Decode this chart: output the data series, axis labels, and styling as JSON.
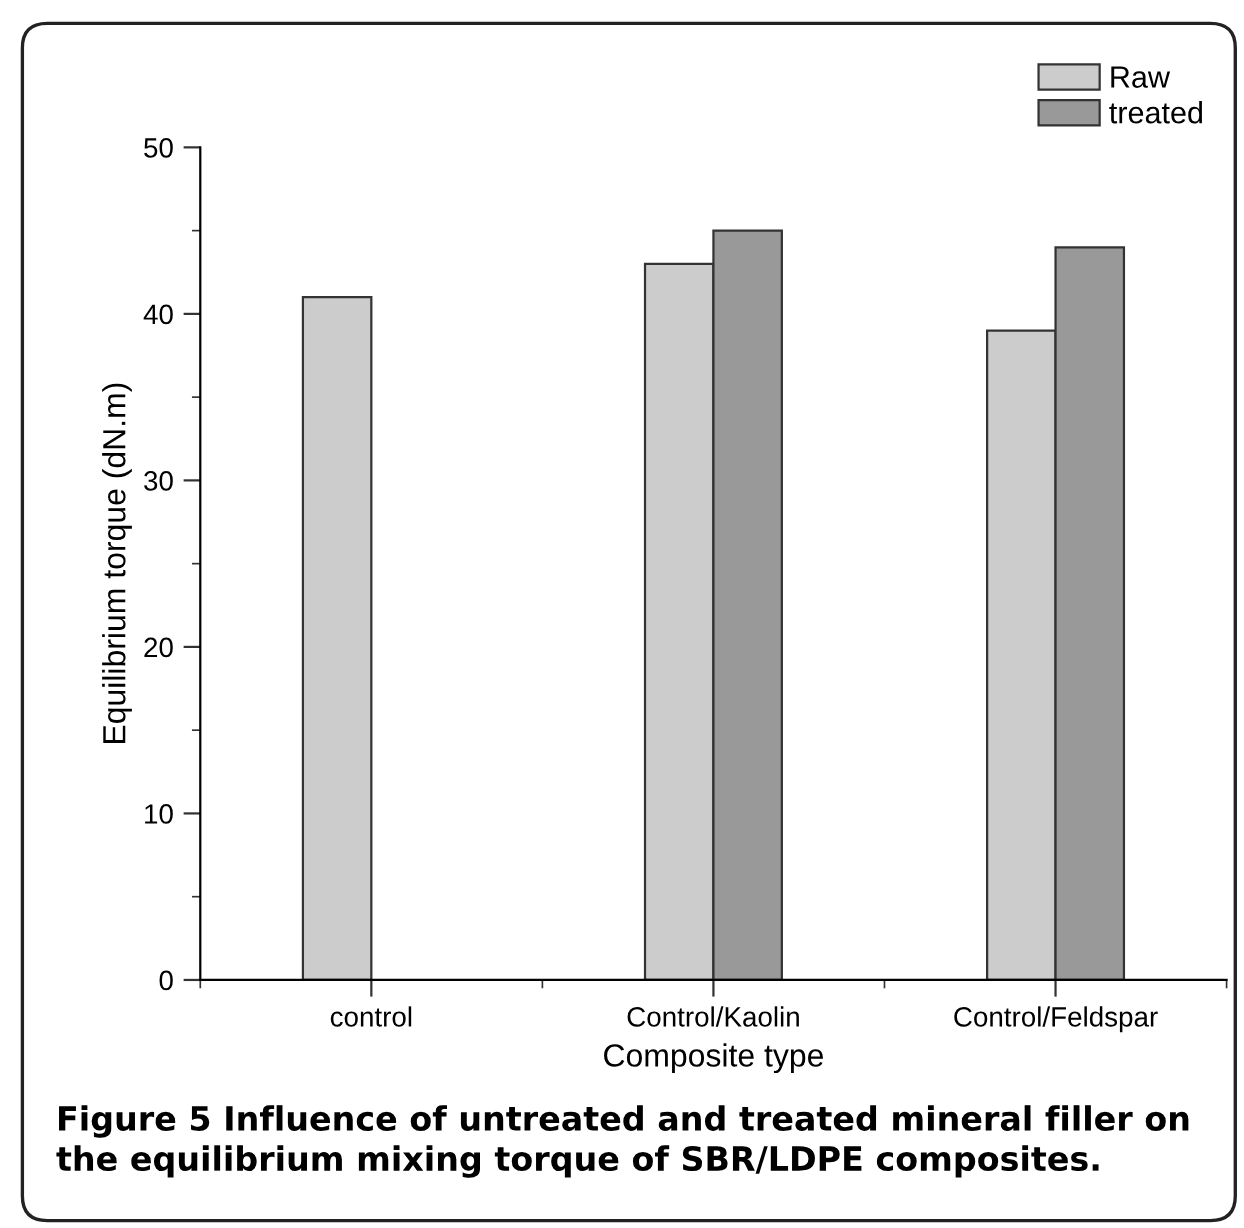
{
  "chart_data": {
    "type": "bar",
    "xlabel": "Composite type",
    "ylabel": "Equilibrium torque (dN.m)",
    "categories": [
      "control",
      "Control/Kaolin",
      "Control/Feldspar"
    ],
    "series": [
      {
        "name": "Raw",
        "color": "#cccccc",
        "values": [
          41,
          43,
          39
        ]
      },
      {
        "name": "treated",
        "color": "#999999",
        "values": [
          null,
          45,
          44
        ]
      }
    ],
    "ylim": [
      0,
      50
    ],
    "yticks": [
      0,
      10,
      20,
      30,
      40,
      50
    ],
    "grid": false,
    "legend": "top right",
    "annotations": [
      "Figure 5 Influence of untreated and treated mineral filler on the equilibrium mixing torque of SBR/LDPE composites."
    ]
  }
}
